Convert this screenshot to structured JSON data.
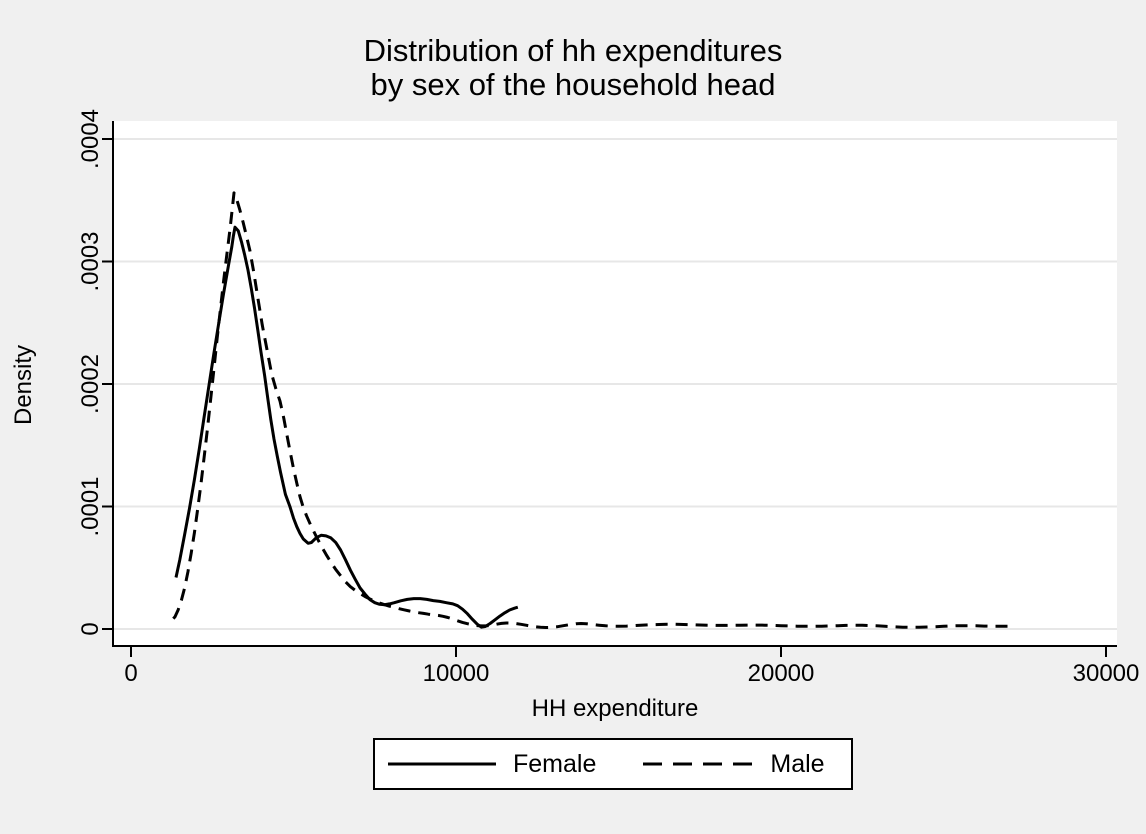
{
  "figure": {
    "title_line1": "Distribution of hh expenditures",
    "title_line2": "by sex of the household head",
    "background_color": "#f0f0f0",
    "plot_background_color": "#ffffff",
    "gridline_color": "#e7e7e7",
    "axis_color": "#000000",
    "text_color": "#000000"
  },
  "legend": {
    "items": [
      {
        "label": "Female",
        "line_style": "solid"
      },
      {
        "label": "Male",
        "line_style": "dashed"
      }
    ]
  },
  "chart_data": {
    "type": "line",
    "title": "Distribution of hh expenditures by sex of the household head",
    "xlabel": "HH expenditure",
    "ylabel": "Density",
    "xlim": [
      0,
      30000
    ],
    "ylim": [
      0,
      0.0004
    ],
    "x_ticks": [
      0,
      10000,
      20000,
      30000
    ],
    "x_tick_labels": [
      "0",
      "10000",
      "20000",
      "30000"
    ],
    "y_ticks": [
      0,
      0.0001,
      0.0002,
      0.0003,
      0.0004
    ],
    "y_tick_labels": [
      "0",
      ".0001",
      ".0002",
      ".0003",
      ".0004"
    ],
    "grid": true,
    "legend_position": "bottom",
    "series": [
      {
        "name": "Female",
        "line_style": "solid",
        "color": "#000000",
        "points": [
          [
            1385,
            4.2e-05
          ],
          [
            1500,
            5.65e-05
          ],
          [
            1650,
            7.7e-05
          ],
          [
            1800,
            9.85e-05
          ],
          [
            1950,
            0.000122
          ],
          [
            2100,
            0.000147
          ],
          [
            2250,
            0.000173
          ],
          [
            2400,
            0.000199
          ],
          [
            2550,
            0.000225
          ],
          [
            2700,
            0.00025
          ],
          [
            2850,
            0.000274
          ],
          [
            3000,
            0.000297
          ],
          [
            3100,
            0.000312
          ],
          [
            3150,
            0.000321
          ],
          [
            3200,
            0.000328
          ],
          [
            3300,
            0.000325
          ],
          [
            3400,
            0.000316
          ],
          [
            3500,
            0.000305
          ],
          [
            3600,
            0.000293
          ],
          [
            3700,
            0.000278
          ],
          [
            3800,
            0.000262
          ],
          [
            3900,
            0.000244
          ],
          [
            4000,
            0.000226
          ],
          [
            4110,
            0.000207
          ],
          [
            4215,
            0.000187
          ],
          [
            4300,
            0.000171
          ],
          [
            4400,
            0.000155
          ],
          [
            4500,
            0.000141
          ],
          [
            4600,
            0.000128
          ],
          [
            4750,
            0.00011
          ],
          [
            4890,
            0.0001
          ],
          [
            5000,
            9.05e-05
          ],
          [
            5100,
            8.35e-05
          ],
          [
            5200,
            7.8e-05
          ],
          [
            5300,
            7.35e-05
          ],
          [
            5450,
            7e-05
          ],
          [
            5550,
            7.06e-05
          ],
          [
            5700,
            7.45e-05
          ],
          [
            5850,
            7.65e-05
          ],
          [
            6000,
            7.6e-05
          ],
          [
            6150,
            7.44e-05
          ],
          [
            6300,
            7.05e-05
          ],
          [
            6450,
            6.45e-05
          ],
          [
            6600,
            5.65e-05
          ],
          [
            6750,
            4.8e-05
          ],
          [
            6900,
            4.05e-05
          ],
          [
            7050,
            3.35e-05
          ],
          [
            7200,
            2.85e-05
          ],
          [
            7350,
            2.4e-05
          ],
          [
            7500,
            2.15e-05
          ],
          [
            7650,
            2.02e-05
          ],
          [
            7800,
            1.98e-05
          ],
          [
            7950,
            2.05e-05
          ],
          [
            8100,
            2.15e-05
          ],
          [
            8300,
            2.3e-05
          ],
          [
            8500,
            2.42e-05
          ],
          [
            8700,
            2.48e-05
          ],
          [
            8900,
            2.48e-05
          ],
          [
            9100,
            2.42e-05
          ],
          [
            9300,
            2.32e-05
          ],
          [
            9500,
            2.25e-05
          ],
          [
            9700,
            2.15e-05
          ],
          [
            9900,
            2.05e-05
          ],
          [
            10050,
            1.9e-05
          ],
          [
            10200,
            1.62e-05
          ],
          [
            10350,
            1.25e-05
          ],
          [
            10500,
            8e-06
          ],
          [
            10650,
            4e-06
          ],
          [
            10780,
            1.5e-06
          ],
          [
            10900,
            2e-06
          ],
          [
            11050,
            4.5e-06
          ],
          [
            11200,
            7.5e-06
          ],
          [
            11350,
            1.05e-05
          ],
          [
            11500,
            1.32e-05
          ],
          [
            11650,
            1.55e-05
          ],
          [
            11800,
            1.7e-05
          ],
          [
            11900,
            1.78e-05
          ]
        ]
      },
      {
        "name": "Male",
        "line_style": "dashed",
        "color": "#000000",
        "points": [
          [
            1300,
            8.5e-06
          ],
          [
            1354,
            1e-05
          ],
          [
            1450,
            1.55e-05
          ],
          [
            1550,
            2.35e-05
          ],
          [
            1650,
            3.35e-05
          ],
          [
            1750,
            4.65e-05
          ],
          [
            1850,
            6.15e-05
          ],
          [
            1950,
            7.85e-05
          ],
          [
            2050,
            9.75e-05
          ],
          [
            2150,
            0.000118
          ],
          [
            2250,
            0.00014
          ],
          [
            2350,
            0.000163
          ],
          [
            2450,
            0.000187
          ],
          [
            2550,
            0.000212
          ],
          [
            2650,
            0.000237
          ],
          [
            2750,
            0.000261
          ],
          [
            2850,
            0.000284
          ],
          [
            2950,
            0.000306
          ],
          [
            3050,
            0.000327
          ],
          [
            3120,
            0.000344
          ],
          [
            3170,
            0.000356
          ],
          [
            3250,
            0.000351
          ],
          [
            3350,
            0.000342
          ],
          [
            3450,
            0.000332
          ],
          [
            3550,
            0.000321
          ],
          [
            3660,
            0.000309
          ],
          [
            3780,
            0.000291
          ],
          [
            3910,
            0.000269
          ],
          [
            4040,
            0.000248
          ],
          [
            4185,
            0.000228
          ],
          [
            4330,
            0.000208
          ],
          [
            4460,
            0.000196
          ],
          [
            4585,
            0.000186
          ],
          [
            4700,
            0.000172
          ],
          [
            4800,
            0.000158
          ],
          [
            4900,
            0.000144
          ],
          [
            5000,
            0.000131
          ],
          [
            5100,
            0.000119
          ],
          [
            5200,
            0.000108
          ],
          [
            5292,
            0.0001
          ],
          [
            5400,
            9.25e-05
          ],
          [
            5550,
            8.35e-05
          ],
          [
            5700,
            7.55e-05
          ],
          [
            5850,
            6.8e-05
          ],
          [
            6000,
            6.1e-05
          ],
          [
            6150,
            5.45e-05
          ],
          [
            6300,
            4.85e-05
          ],
          [
            6450,
            4.35e-05
          ],
          [
            6600,
            3.85e-05
          ],
          [
            6750,
            3.45e-05
          ],
          [
            6900,
            3.15e-05
          ],
          [
            7050,
            2.9e-05
          ],
          [
            7200,
            2.65e-05
          ],
          [
            7350,
            2.45e-05
          ],
          [
            7500,
            2.28e-05
          ],
          [
            7650,
            2.12e-05
          ],
          [
            7800,
            1.98e-05
          ],
          [
            7950,
            1.86e-05
          ],
          [
            8100,
            1.76e-05
          ],
          [
            8250,
            1.66e-05
          ],
          [
            8400,
            1.57e-05
          ],
          [
            8550,
            1.48e-05
          ],
          [
            8700,
            1.4e-05
          ],
          [
            8850,
            1.33e-05
          ],
          [
            9000,
            1.27e-05
          ],
          [
            9150,
            1.21e-05
          ],
          [
            9300,
            1.16e-05
          ],
          [
            9450,
            1.11e-05
          ],
          [
            9600,
            1.04e-05
          ],
          [
            9750,
            9.4e-06
          ],
          [
            9900,
            8.1e-06
          ],
          [
            10050,
            6.7e-06
          ],
          [
            10200,
            5.4e-06
          ],
          [
            10350,
            4.3e-06
          ],
          [
            10500,
            3.4e-06
          ],
          [
            10650,
            2.8e-06
          ],
          [
            10800,
            2.5e-06
          ],
          [
            10950,
            2.6e-06
          ],
          [
            11100,
            3.1e-06
          ],
          [
            11250,
            3.9e-06
          ],
          [
            11400,
            4.6e-06
          ],
          [
            11550,
            4.9e-06
          ],
          [
            11700,
            4.8e-06
          ],
          [
            11850,
            4.4e-06
          ],
          [
            12000,
            3.8e-06
          ],
          [
            12150,
            3.1e-06
          ],
          [
            12300,
            2.4e-06
          ],
          [
            12450,
            1.8e-06
          ],
          [
            12600,
            1.4e-06
          ],
          [
            12750,
            1.2e-06
          ],
          [
            12900,
            1.3e-06
          ],
          [
            13100,
            1.8e-06
          ],
          [
            13300,
            2.7e-06
          ],
          [
            13500,
            3.6e-06
          ],
          [
            13700,
            4.3e-06
          ],
          [
            13850,
            4.5e-06
          ],
          [
            14000,
            4.3e-06
          ],
          [
            14200,
            3.7e-06
          ],
          [
            14400,
            3.1e-06
          ],
          [
            14600,
            2.6e-06
          ],
          [
            14800,
            2.3e-06
          ],
          [
            15000,
            2.2e-06
          ],
          [
            15250,
            2.4e-06
          ],
          [
            15500,
            2.8e-06
          ],
          [
            15750,
            3.2e-06
          ],
          [
            16000,
            3.5e-06
          ],
          [
            16250,
            3.7e-06
          ],
          [
            16500,
            3.8e-06
          ],
          [
            16750,
            3.8e-06
          ],
          [
            17000,
            3.7e-06
          ],
          [
            17250,
            3.5e-06
          ],
          [
            17500,
            3.3e-06
          ],
          [
            17750,
            3.1e-06
          ],
          [
            18000,
            2.9e-06
          ],
          [
            18250,
            2.9e-06
          ],
          [
            18500,
            3e-06
          ],
          [
            18750,
            3.1e-06
          ],
          [
            19000,
            3.2e-06
          ],
          [
            19250,
            3.2e-06
          ],
          [
            19500,
            3.1e-06
          ],
          [
            19750,
            2.9e-06
          ],
          [
            20000,
            2.7e-06
          ],
          [
            20250,
            2.5e-06
          ],
          [
            20500,
            2.3e-06
          ],
          [
            20750,
            2.2e-06
          ],
          [
            21000,
            2.2e-06
          ],
          [
            21250,
            2.3e-06
          ],
          [
            21500,
            2.5e-06
          ],
          [
            21750,
            2.7e-06
          ],
          [
            22000,
            2.9e-06
          ],
          [
            22250,
            3e-06
          ],
          [
            22500,
            3e-06
          ],
          [
            22750,
            2.8e-06
          ],
          [
            23000,
            2.5e-06
          ],
          [
            23250,
            2.1e-06
          ],
          [
            23500,
            1.8e-06
          ],
          [
            23750,
            1.5e-06
          ],
          [
            24000,
            1.4e-06
          ],
          [
            24250,
            1.4e-06
          ],
          [
            24500,
            1.6e-06
          ],
          [
            24750,
            1.9e-06
          ],
          [
            25000,
            2.2e-06
          ],
          [
            25250,
            2.5e-06
          ],
          [
            25500,
            2.7e-06
          ],
          [
            25750,
            2.7e-06
          ],
          [
            26000,
            2.6e-06
          ],
          [
            26250,
            2.4e-06
          ],
          [
            26500,
            2.2e-06
          ],
          [
            26750,
            2.2e-06
          ],
          [
            27000,
            2.3e-06
          ]
        ]
      }
    ]
  }
}
